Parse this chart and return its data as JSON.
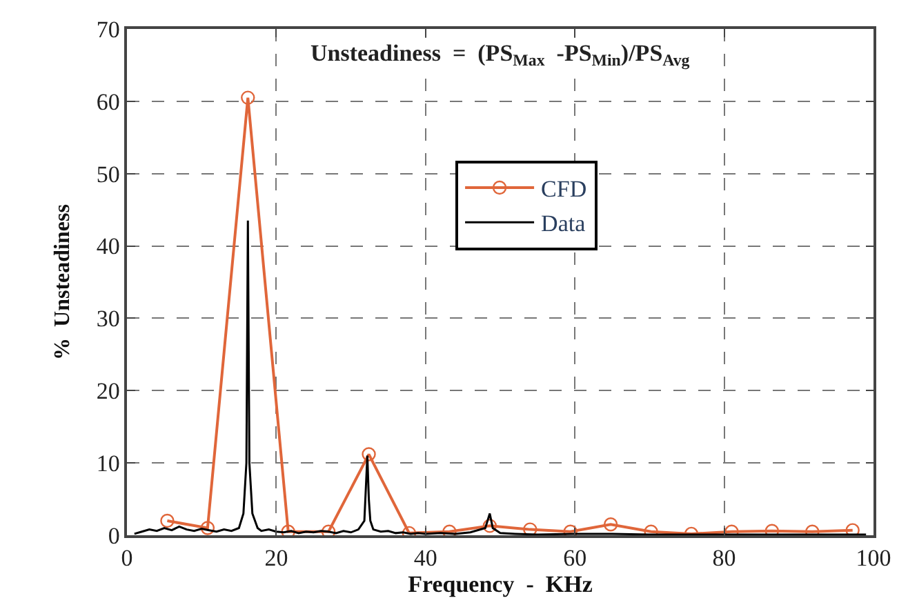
{
  "chart_data": {
    "type": "line",
    "xlabel": "Frequency  -  KHz",
    "ylabel": "%  Unsteadiness",
    "annotations": [
      "Unsteadiness  =  (PS$_{Max}$  -PS$_{Min}$)/PS$_{Avg}$"
    ],
    "xlim": [
      0,
      100
    ],
    "xticks": [
      0,
      20,
      40,
      60,
      80,
      100
    ],
    "ylim": [
      0,
      70
    ],
    "yticks": [
      0,
      10,
      20,
      30,
      40,
      50,
      60,
      70
    ],
    "grid": true,
    "legend": "top right",
    "line_style": "solid",
    "series": [
      {
        "name": "CFD",
        "color": "#e0663a",
        "marker": "circle",
        "x": [
          5.4,
          10.8,
          16.2,
          21.6,
          27,
          32.4,
          37.8,
          43.2,
          48.6,
          54,
          59.4,
          64.8,
          70.2,
          75.6,
          81,
          86.4,
          91.8,
          97.2
        ],
        "values": [
          2,
          1,
          60.5,
          0.5,
          0.5,
          11.2,
          0.3,
          0.5,
          1.3,
          0.8,
          0.5,
          1.5,
          0.5,
          0.2,
          0.5,
          0.6,
          0.5,
          0.7
        ]
      },
      {
        "name": "Data",
        "color": "#000000",
        "marker": "none",
        "x": [
          1,
          2,
          3,
          4,
          5,
          6,
          7,
          8,
          9,
          10,
          11,
          12,
          13,
          14,
          15,
          15.6,
          16,
          16.2,
          16.4,
          16.8,
          17.5,
          18,
          19,
          20,
          21,
          22,
          23,
          24,
          25,
          26,
          27,
          28,
          29,
          30,
          31,
          31.8,
          32.2,
          32.4,
          32.6,
          33,
          34,
          35,
          36,
          37,
          38,
          39,
          40,
          42,
          44,
          46,
          48,
          48.6,
          49,
          50,
          52,
          55,
          60,
          65,
          70,
          75,
          80,
          85,
          90,
          95,
          99
        ],
        "values": [
          0.2,
          0.5,
          0.8,
          0.6,
          1,
          0.7,
          1.2,
          0.8,
          0.6,
          0.9,
          0.7,
          0.5,
          0.8,
          0.6,
          1,
          3,
          10,
          43.5,
          10,
          3,
          1,
          0.6,
          0.8,
          0.5,
          0.4,
          0.6,
          0.3,
          0.5,
          0.4,
          0.6,
          0.5,
          0.3,
          0.6,
          0.4,
          0.8,
          2,
          11,
          5,
          2,
          0.8,
          0.5,
          0.6,
          0.3,
          0.4,
          0.2,
          0.3,
          0.2,
          0.3,
          0.2,
          0.4,
          1,
          3,
          1,
          0.3,
          0.2,
          0.1,
          0.2,
          0.2,
          0.1,
          0.1,
          0.1,
          0.1,
          0.1,
          0.1,
          0.1
        ]
      }
    ]
  }
}
